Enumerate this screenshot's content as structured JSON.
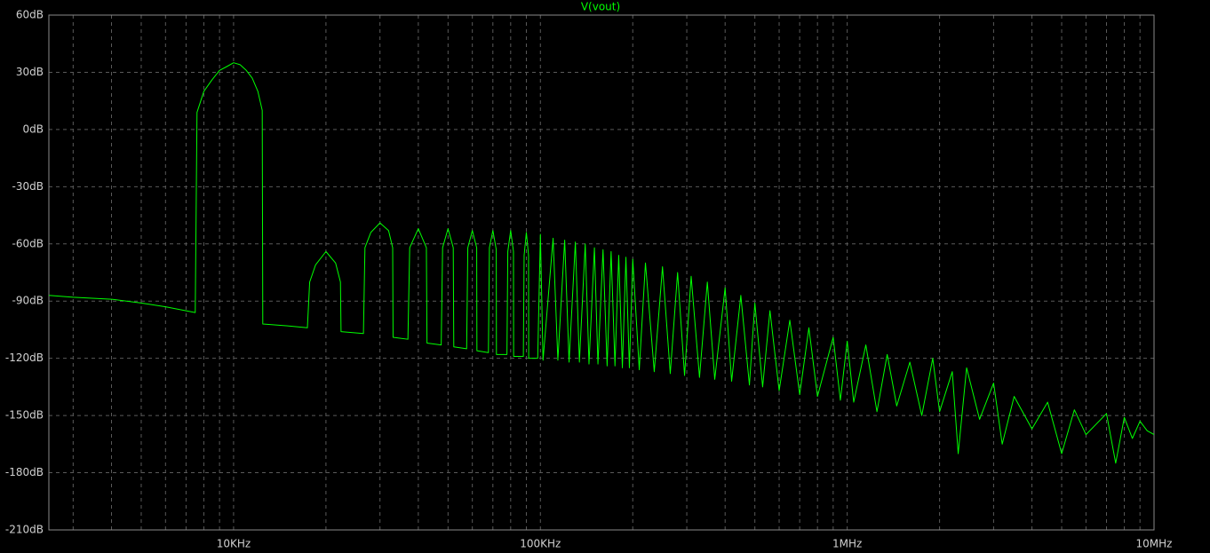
{
  "chart_data": {
    "type": "line",
    "x_log": true,
    "grid": true,
    "xlim": [
      2500,
      10000000
    ],
    "ylim": [
      -210,
      60
    ],
    "xticks": [
      {
        "value": 10000,
        "label": "10KHz"
      },
      {
        "value": 100000,
        "label": "100KHz"
      },
      {
        "value": 1000000,
        "label": "1MHz"
      },
      {
        "value": 10000000,
        "label": "10MHz"
      }
    ],
    "x_minor_ticks": [
      3000,
      4000,
      5000,
      6000,
      7000,
      8000,
      9000,
      20000,
      30000,
      40000,
      50000,
      60000,
      70000,
      80000,
      90000,
      200000,
      300000,
      400000,
      500000,
      600000,
      700000,
      800000,
      900000,
      2000000,
      3000000,
      4000000,
      5000000,
      6000000,
      7000000,
      8000000,
      9000000
    ],
    "yticks": [
      {
        "value": 60,
        "label": "60dB"
      },
      {
        "value": 30,
        "label": "30dB"
      },
      {
        "value": 0,
        "label": "0dB"
      },
      {
        "value": -30,
        "label": "-30dB"
      },
      {
        "value": -60,
        "label": "-60dB"
      },
      {
        "value": -90,
        "label": "-90dB"
      },
      {
        "value": -120,
        "label": "-120dB"
      },
      {
        "value": -150,
        "label": "-150dB"
      },
      {
        "value": -180,
        "label": "-180dB"
      },
      {
        "value": -210,
        "label": "-210dB"
      }
    ],
    "x": [
      2500,
      3000,
      4000,
      5000,
      6000,
      7500,
      7600,
      8000,
      8500,
      9000,
      9500,
      10000,
      10500,
      11000,
      11500,
      12000,
      12400,
      12450,
      15000,
      17400,
      17700,
      18500,
      20000,
      21500,
      22300,
      22400,
      26500,
      26800,
      28000,
      30000,
      32000,
      33000,
      33100,
      37000,
      37500,
      40000,
      42500,
      42700,
      47500,
      48000,
      50000,
      52000,
      52200,
      57500,
      58000,
      60000,
      62000,
      62100,
      67700,
      68200,
      70000,
      71800,
      71900,
      77800,
      78300,
      80000,
      81700,
      81800,
      88000,
      88500,
      90000,
      91500,
      91600,
      98000,
      100000,
      102000,
      110000,
      114000,
      120000,
      124000,
      130000,
      134000,
      140000,
      144000,
      150000,
      154000,
      160000,
      165000,
      170000,
      175000,
      180000,
      185000,
      190000,
      195000,
      200000,
      210000,
      220000,
      235000,
      250000,
      265000,
      280000,
      295000,
      310000,
      330000,
      350000,
      370000,
      400000,
      420000,
      450000,
      480000,
      500000,
      530000,
      560000,
      600000,
      650000,
      700000,
      750000,
      800000,
      900000,
      950000,
      1000000,
      1050000,
      1150000,
      1250000,
      1350000,
      1450000,
      1600000,
      1750000,
      1900000,
      2000000,
      2200000,
      2300000,
      2450000,
      2700000,
      3000000,
      3200000,
      3500000,
      4000000,
      4500000,
      5000000,
      5500000,
      6000000,
      7000000,
      7500000,
      8000000,
      8500000,
      9000000,
      9500000,
      10000000
    ],
    "series": [
      {
        "name": "V(vout)",
        "color": "#00ff00",
        "values": [
          -87,
          -88,
          -89,
          -91,
          -93,
          -96,
          9,
          20,
          26,
          31,
          33,
          35,
          34,
          31,
          27,
          20,
          10,
          -102,
          -103,
          -104,
          -80,
          -71,
          -64,
          -70,
          -80,
          -106,
          -107,
          -62,
          -54,
          -49,
          -53,
          -62,
          -109,
          -110,
          -62,
          -52,
          -62,
          -112,
          -113,
          -62,
          -52,
          -62,
          -114,
          -115,
          -62,
          -53,
          -62,
          -116,
          -117,
          -62,
          -53,
          -63,
          -118,
          -118,
          -64,
          -53,
          -64,
          -119,
          -119,
          -66,
          -54,
          -66,
          -120,
          -120,
          -55,
          -121,
          -57,
          -121,
          -58,
          -122,
          -59,
          -122,
          -60,
          -123,
          -62,
          -123,
          -63,
          -124,
          -64,
          -124,
          -66,
          -125,
          -67,
          -125,
          -68,
          -126,
          -70,
          -127,
          -72,
          -128,
          -75,
          -129,
          -77,
          -130,
          -80,
          -131,
          -83,
          -132,
          -87,
          -134,
          -91,
          -135,
          -95,
          -137,
          -100,
          -139,
          -104,
          -140,
          -109,
          -142,
          -111,
          -143,
          -113,
          -148,
          -118,
          -145,
          -122,
          -150,
          -120,
          -148,
          -127,
          -170,
          -125,
          -152,
          -133,
          -165,
          -140,
          -157,
          -143,
          -170,
          -147,
          -160,
          -149,
          -175,
          -151,
          -162,
          -153,
          -158,
          -160
        ]
      }
    ]
  }
}
